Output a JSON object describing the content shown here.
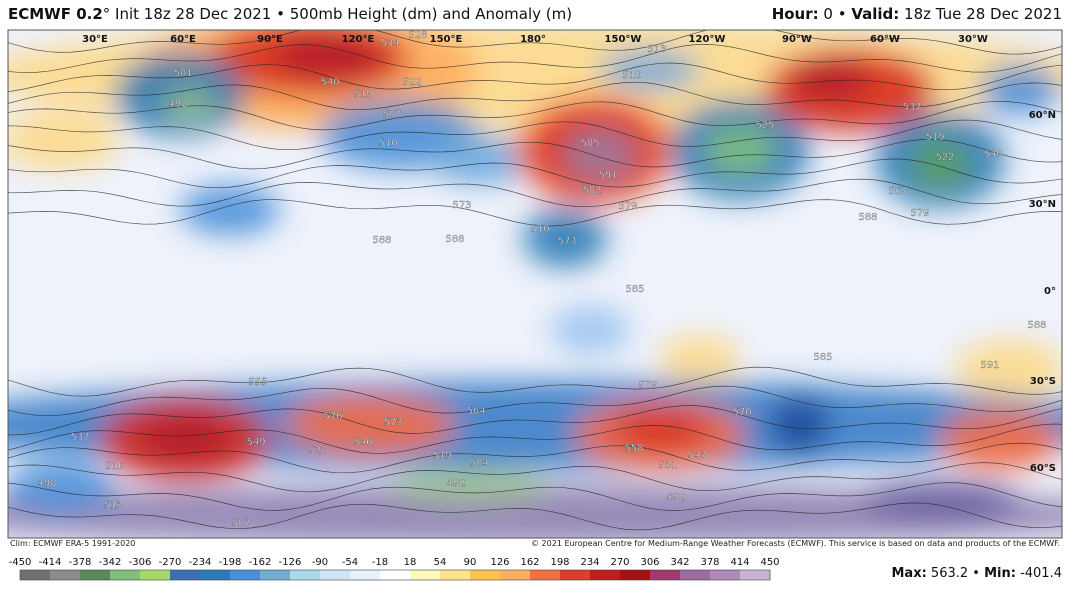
{
  "header": {
    "model": "ECMWF 0.2",
    "title": "° Init 18z 28 Dec 2021 • 500mb Height (dm) and Anomaly (m)",
    "hour_label": "Hour:",
    "hour_value": " 0 • ",
    "valid_label": "Valid:",
    "valid_value": " 18z Tue 28 Dec 2021"
  },
  "map": {
    "lon_labels": [
      "30°E",
      "60°E",
      "90°E",
      "120°E",
      "150°E",
      "180°",
      "150°W",
      "120°W",
      "90°W",
      "60°W",
      "30°W"
    ],
    "lat_labels": [
      "60°N",
      "30°N",
      "0°",
      "30°S",
      "60°S"
    ],
    "contour_labels": [
      "534",
      "528",
      "540",
      "522",
      "513",
      "510",
      "519",
      "501",
      "498",
      "507",
      "510",
      "591",
      "585",
      "582",
      "579",
      "573",
      "510",
      "573",
      "588",
      "588",
      "585",
      "525",
      "522",
      "537",
      "519",
      "549",
      "567",
      "579",
      "588",
      "588",
      "591",
      "585",
      "579",
      "570",
      "549",
      "576",
      "573",
      "546",
      "528",
      "519",
      "564",
      "558",
      "543",
      "531",
      "504",
      "492",
      "492",
      "498",
      "507",
      "513",
      "516",
      "537",
      "555"
    ]
  },
  "footer": {
    "climo": "Clim: ECMWF ERA-5 1991-2020",
    "copyright": "© 2021 European Centre for Medium-Range Weather Forecasts (ECMWF). This service is based on data and products of the ECMWF."
  },
  "colorbar": {
    "ticks": [
      -450,
      -414,
      -378,
      -342,
      -306,
      -270,
      -234,
      -198,
      -162,
      -126,
      -90,
      -54,
      -18,
      18,
      54,
      90,
      126,
      162,
      198,
      234,
      270,
      306,
      342,
      378,
      414,
      450
    ]
  },
  "stats": {
    "max_label": "Max:",
    "max": 563.2,
    "min_label": "Min:",
    "min": -401.4
  }
}
